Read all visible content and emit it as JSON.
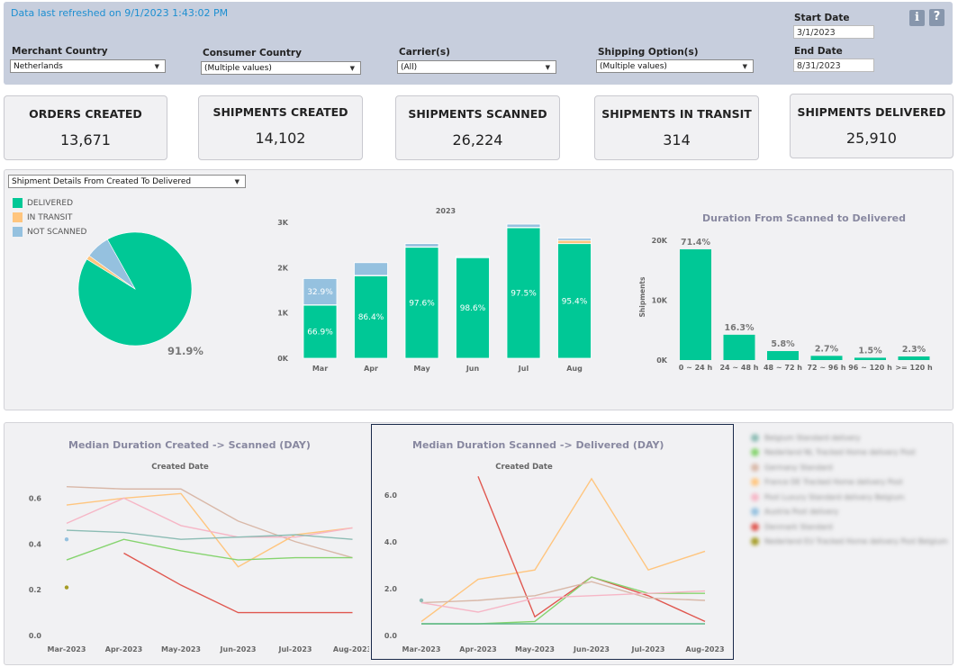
{
  "header": {
    "refresh_text": "Data last refreshed on 9/1/2023 1:43:02 PM",
    "filters": [
      {
        "label": "Merchant Country",
        "value": "Netherlands"
      },
      {
        "label": "Consumer Country",
        "value": "(Multiple values)"
      },
      {
        "label": "Carrier(s)",
        "value": "(All)"
      },
      {
        "label": "Shipping Option(s)",
        "value": "(Multiple values)"
      }
    ],
    "start_date_label": "Start Date",
    "start_date": "3/1/2023",
    "end_date_label": "End Date",
    "end_date": "8/31/2023",
    "info_icon": "i",
    "help_icon": "?"
  },
  "kpis": [
    {
      "title": "ORDERS CREATED",
      "value": "13,671"
    },
    {
      "title": "SHIPMENTS CREATED",
      "value": "14,102"
    },
    {
      "title": "SHIPMENTS SCANNED",
      "value": "26,224"
    },
    {
      "title": "SHIPMENTS IN TRANSIT",
      "value": "314"
    },
    {
      "title": "SHIPMENTS DELIVERED",
      "value": "25,910"
    }
  ],
  "details_dropdown": "Shipment Details From Created To Delivered",
  "colors": {
    "delivered": "#00c896",
    "in_transit": "#ffc57e",
    "not_scanned": "#95c1df"
  },
  "chart_data": [
    {
      "type": "pie",
      "legend": [
        "DELIVERED",
        "IN TRANSIT",
        "NOT SCANNED"
      ],
      "values": [
        91.9,
        1.2,
        6.9
      ],
      "label": "91.9%"
    },
    {
      "type": "bar",
      "title": "2023",
      "categories": [
        "Mar",
        "Apr",
        "May",
        "Jun",
        "Jul",
        "Aug"
      ],
      "yticks": [
        "0K",
        "1K",
        "2K",
        "3K"
      ],
      "ylim": [
        0,
        3000
      ],
      "series": [
        {
          "name": "DELIVERED",
          "values": [
            1170,
            1820,
            2450,
            2220,
            2880,
            2530
          ],
          "labels": [
            "66.9%",
            "86.4%",
            "97.6%",
            "98.6%",
            "97.5%",
            "95.4%"
          ]
        },
        {
          "name": "IN TRANSIT",
          "values": [
            10,
            10,
            10,
            10,
            10,
            70
          ],
          "labels": [
            "",
            "",
            "",
            "",
            "",
            ""
          ]
        },
        {
          "name": "NOT SCANNED",
          "values": [
            580,
            280,
            70,
            20,
            70,
            50
          ],
          "labels": [
            "32.9%",
            "",
            "",
            "",
            "",
            ""
          ]
        }
      ]
    },
    {
      "type": "bar",
      "title": "Duration From Scanned to Delivered",
      "ylabel": "Shipments",
      "categories": [
        "0 ~ 24 h",
        "24 ~ 48 h",
        "48 ~ 72 h",
        "72 ~ 96 h",
        "96 ~ 120 h",
        ">= 120 h"
      ],
      "values": [
        18500,
        4230,
        1500,
        700,
        390,
        600
      ],
      "labels": [
        "71.4%",
        "16.3%",
        "5.8%",
        "2.7%",
        "1.5%",
        "2.3%"
      ],
      "yticks": [
        "0K",
        "10K",
        "20K"
      ],
      "ylim": [
        0,
        20000
      ]
    },
    {
      "type": "line",
      "title": "Median Duration Created -> Scanned (DAY)",
      "subtitle": "Created Date",
      "categories": [
        "Mar-2023",
        "Apr-2023",
        "May-2023",
        "Jun-2023",
        "Jul-2023",
        "Aug-2023"
      ],
      "yticks": [
        "0.0",
        "0.2",
        "0.4",
        "0.6"
      ],
      "ylim": [
        0,
        0.7
      ],
      "series": [
        {
          "color": "#d9b8a8",
          "values": [
            0.65,
            0.64,
            0.64,
            0.5,
            0.41,
            0.34
          ]
        },
        {
          "color": "#ffc57e",
          "values": [
            0.57,
            0.6,
            0.62,
            0.3,
            0.44,
            0.47
          ]
        },
        {
          "color": "#f6b6c6",
          "values": [
            0.49,
            0.6,
            0.48,
            0.43,
            0.43,
            0.47
          ]
        },
        {
          "color": "#8cbcb4",
          "values": [
            0.46,
            0.45,
            0.42,
            0.43,
            0.44,
            0.42
          ]
        },
        {
          "color": "#86d46f",
          "values": [
            0.33,
            0.42,
            0.37,
            0.33,
            0.34,
            0.34
          ]
        },
        {
          "color": "#e0574f",
          "values": [
            null,
            0.36,
            0.22,
            0.1,
            0.1,
            0.1
          ]
        },
        {
          "color": "#95c1df",
          "values": [
            0.42,
            null,
            null,
            null,
            null,
            null
          ]
        },
        {
          "color": "#a59c26",
          "values": [
            0.21,
            null,
            null,
            null,
            null,
            null
          ]
        }
      ]
    },
    {
      "type": "line",
      "title": "Median Duration Scanned -> Delivered (DAY)",
      "subtitle": "Created Date",
      "categories": [
        "Mar-2023",
        "Apr-2023",
        "May-2023",
        "Jun-2023",
        "Jul-2023",
        "Aug-2023"
      ],
      "yticks": [
        "0.0",
        "2.0",
        "4.0",
        "6.0"
      ],
      "ylim": [
        0,
        7
      ],
      "series": [
        {
          "color": "#ffc57e",
          "values": [
            0.6,
            2.4,
            2.8,
            6.7,
            2.8,
            3.6
          ]
        },
        {
          "color": "#e0574f",
          "values": [
            null,
            6.8,
            0.8,
            2.5,
            1.7,
            0.6
          ]
        },
        {
          "color": "#86d46f",
          "values": [
            0.5,
            0.5,
            0.6,
            2.5,
            1.8,
            1.8
          ]
        },
        {
          "color": "#d9b8a8",
          "values": [
            1.4,
            1.5,
            1.7,
            2.3,
            1.6,
            1.5
          ]
        },
        {
          "color": "#f6b6c6",
          "values": [
            1.4,
            1.0,
            1.6,
            1.7,
            1.8,
            1.9
          ]
        },
        {
          "color": "#5fb88a",
          "values": [
            0.5,
            0.5,
            0.5,
            0.5,
            0.5,
            0.5
          ]
        },
        {
          "color": "#8cbcb4",
          "values": [
            1.5,
            null,
            null,
            null,
            null,
            null
          ]
        }
      ]
    }
  ],
  "blurred_legend": [
    {
      "color": "#8cbcb4",
      "label": "Belgium Standard delivery"
    },
    {
      "color": "#86d46f",
      "label": "Nederland NL Tracked Home delivery Post"
    },
    {
      "color": "#d9b8a8",
      "label": "Germany Standard"
    },
    {
      "color": "#ffc57e",
      "label": "France DE Tracked Home delivery Post"
    },
    {
      "color": "#f6b6c6",
      "label": "Post Luxury Standard delivery Belgium"
    },
    {
      "color": "#95c1df",
      "label": "Austria Post delivery"
    },
    {
      "color": "#e0574f",
      "label": "Denmark Standard"
    },
    {
      "color": "#a59c26",
      "label": "Nederland EU Tracked Home delivery Post Belgium"
    }
  ]
}
